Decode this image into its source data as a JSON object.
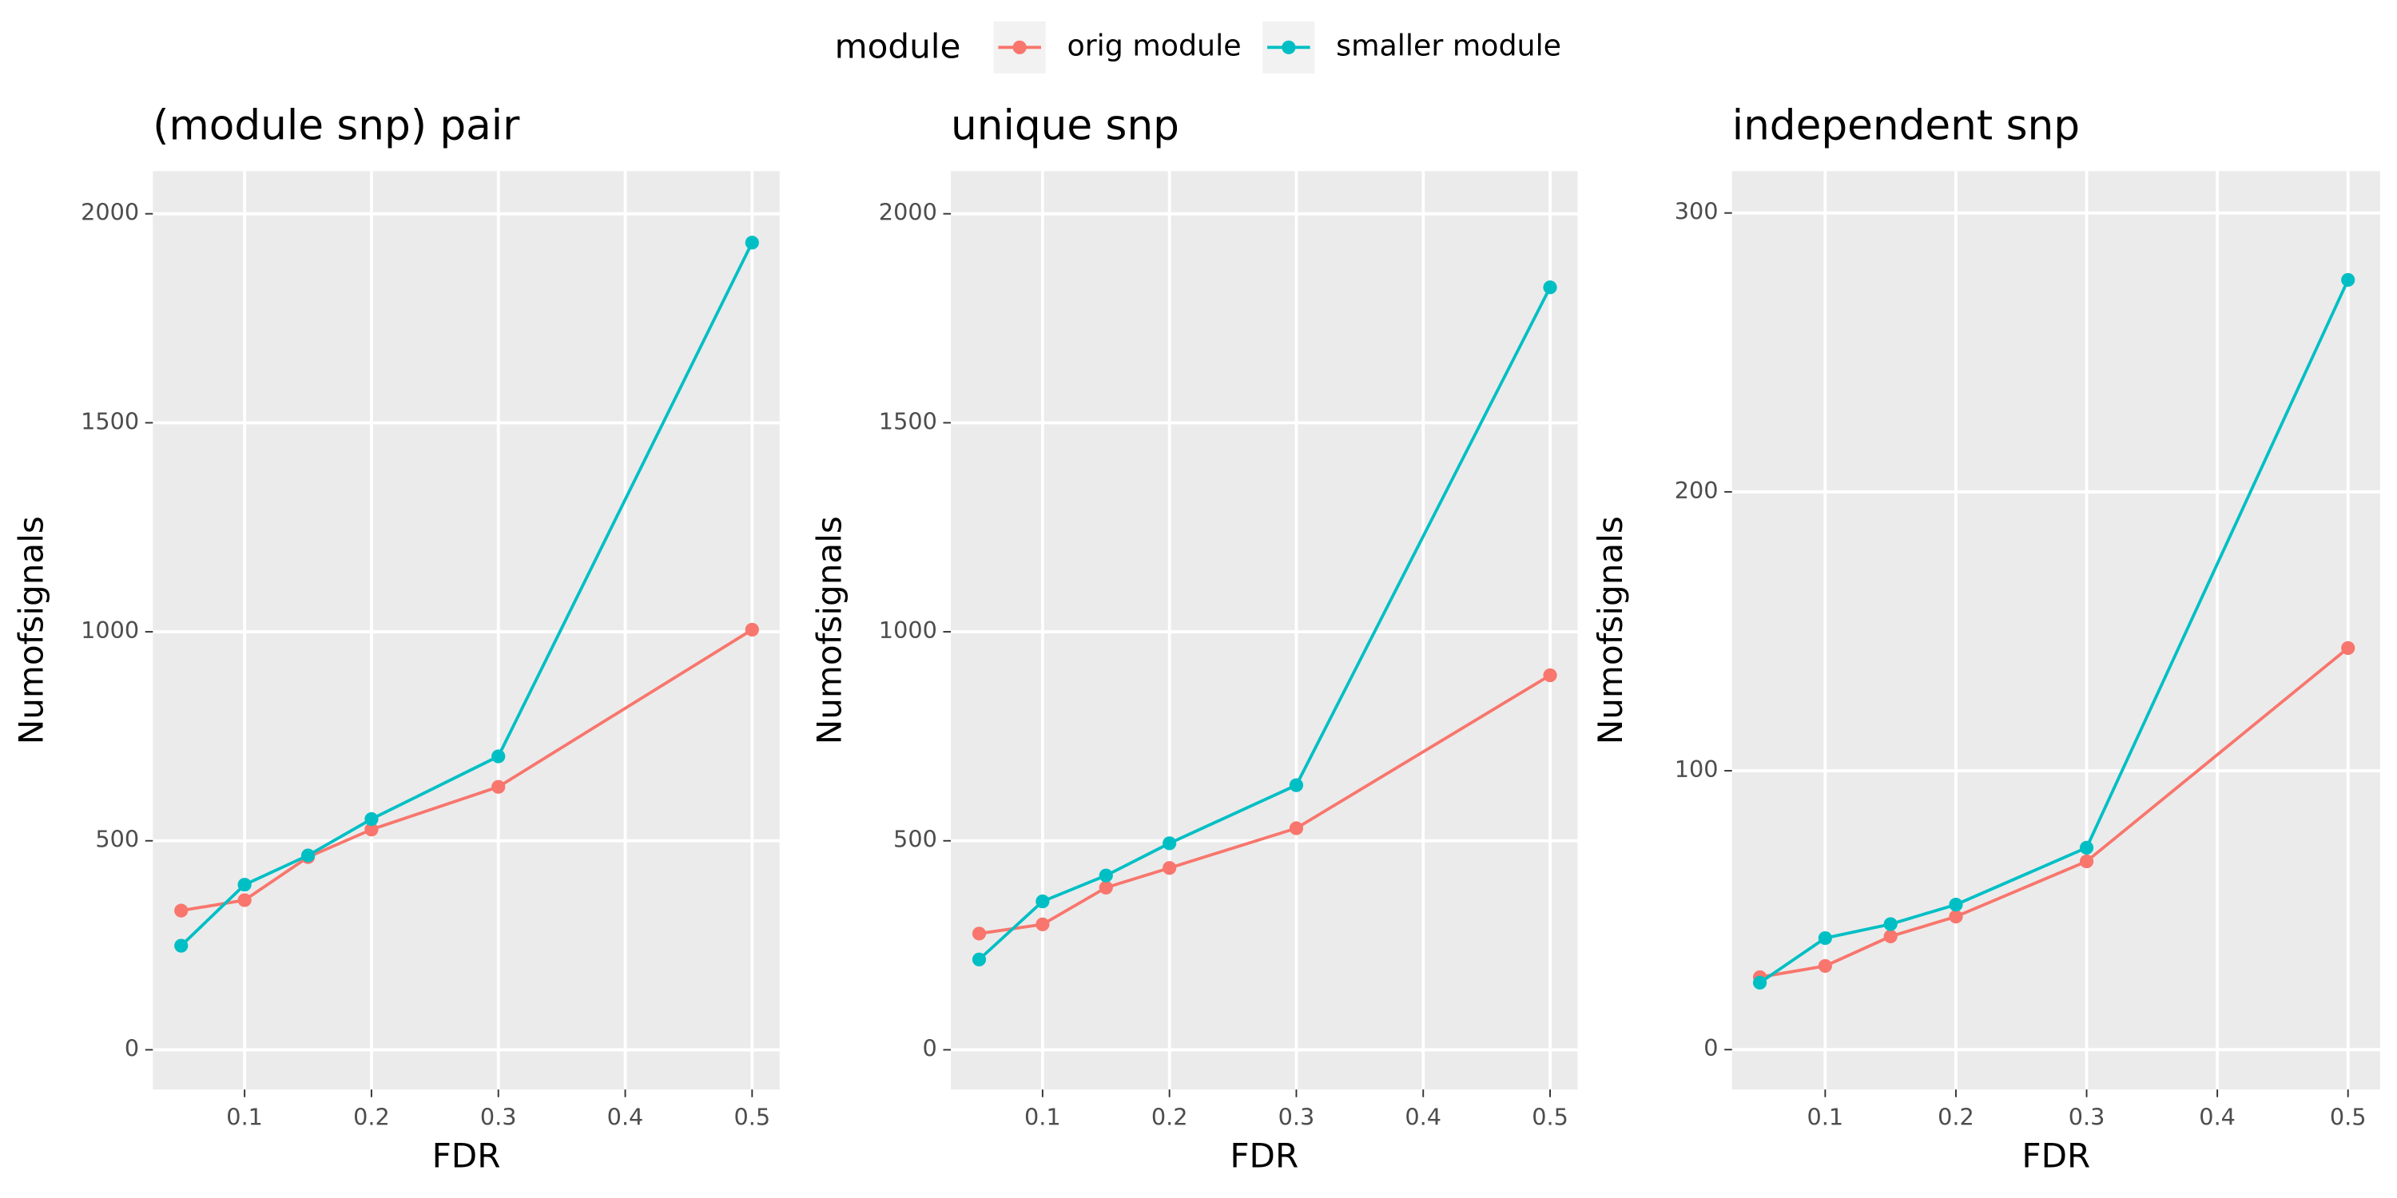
{
  "chart_data": [
    {
      "type": "line",
      "title": "(module snp) pair",
      "x_label": "FDR",
      "y_label": "Numofsignals",
      "legend_title": "module",
      "x": [
        0.05,
        0.1,
        0.15,
        0.2,
        0.3,
        0.5
      ],
      "series": [
        {
          "name": "orig module",
          "color": "#F8766D",
          "values": [
            333,
            358,
            461,
            527,
            629,
            1005
          ]
        },
        {
          "name": "smaller module",
          "color": "#00BFC4",
          "values": [
            249,
            395,
            465,
            552,
            702,
            1931
          ]
        }
      ],
      "xlim": [
        0.0277,
        0.5217
      ],
      "ylim": [
        -95,
        2102
      ],
      "xticks": [
        0.1,
        0.2,
        0.3,
        0.4,
        0.5
      ],
      "yticks": [
        0,
        500,
        1000,
        1500,
        2000
      ],
      "grid": true
    },
    {
      "type": "line",
      "title": "unique snp",
      "x_label": "FDR",
      "y_label": "Numofsignals",
      "x": [
        0.05,
        0.1,
        0.15,
        0.2,
        0.3,
        0.5
      ],
      "series": [
        {
          "name": "orig module",
          "color": "#F8766D",
          "values": [
            278,
            300,
            388,
            435,
            530,
            896
          ]
        },
        {
          "name": "smaller module",
          "color": "#00BFC4",
          "values": [
            216,
            355,
            417,
            494,
            633,
            1824
          ]
        }
      ],
      "xlim": [
        0.0277,
        0.5217
      ],
      "ylim": [
        -95,
        2102
      ],
      "xticks": [
        0.1,
        0.2,
        0.3,
        0.4,
        0.5
      ],
      "yticks": [
        0,
        500,
        1000,
        1500,
        2000
      ],
      "grid": true
    },
    {
      "type": "line",
      "title": "independent snp",
      "x_label": "FDR",
      "y_label": "Numofsignals",
      "x": [
        0.05,
        0.1,
        0.15,
        0.2,
        0.3,
        0.5
      ],
      "series": [
        {
          "name": "orig module",
          "color": "#F8766D",
          "values": [
            26,
            30,
            40.6,
            47.7,
            67.5,
            144
          ]
        },
        {
          "name": "smaller module",
          "color": "#00BFC4",
          "values": [
            24,
            40,
            45,
            52,
            72.4,
            276
          ]
        }
      ],
      "xlim": [
        0.0287,
        0.5246
      ],
      "ylim": [
        -14.3,
        315
      ],
      "xticks": [
        0.1,
        0.2,
        0.3,
        0.4,
        0.5
      ],
      "yticks": [
        0,
        100,
        200,
        300
      ],
      "grid": true
    }
  ]
}
